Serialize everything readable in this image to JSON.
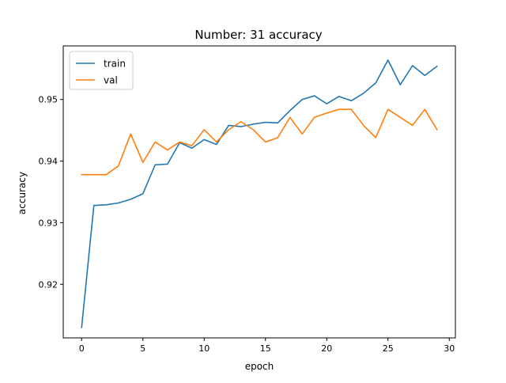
{
  "chart_data": {
    "type": "line",
    "title": "Number: 31 accuracy",
    "xlabel": "epoch",
    "ylabel": "accuracy",
    "xlim": [
      -1.5,
      30.5
    ],
    "ylim": [
      0.9113,
      0.9587
    ],
    "xticks": [
      0,
      5,
      10,
      15,
      20,
      25,
      30
    ],
    "yticks": [
      0.92,
      0.93,
      0.94,
      0.95
    ],
    "ytick_labels": [
      "0.92",
      "0.93",
      "0.94",
      "0.95"
    ],
    "grid": false,
    "legend": {
      "position": "top-left",
      "entries": [
        "train",
        "val"
      ]
    },
    "x": [
      0,
      1,
      2,
      3,
      4,
      5,
      6,
      7,
      8,
      9,
      10,
      11,
      12,
      13,
      14,
      15,
      16,
      17,
      18,
      19,
      20,
      21,
      22,
      23,
      24,
      25,
      26,
      27,
      28,
      29
    ],
    "series": [
      {
        "name": "train",
        "color": "#1f77b4",
        "values": [
          0.913,
          0.9328,
          0.9329,
          0.9332,
          0.9338,
          0.9347,
          0.9394,
          0.9395,
          0.943,
          0.9421,
          0.9435,
          0.9427,
          0.9458,
          0.9456,
          0.946,
          0.9463,
          0.9462,
          0.9482,
          0.95,
          0.9506,
          0.9493,
          0.9505,
          0.9498,
          0.951,
          0.9527,
          0.9564,
          0.9524,
          0.9555,
          0.9539,
          0.9554
        ]
      },
      {
        "name": "val",
        "color": "#ff7f0e",
        "values": [
          0.9378,
          0.9378,
          0.9378,
          0.9392,
          0.9444,
          0.9398,
          0.9431,
          0.9418,
          0.9431,
          0.9425,
          0.9451,
          0.9431,
          0.9451,
          0.9464,
          0.9451,
          0.9431,
          0.9438,
          0.9471,
          0.9444,
          0.9471,
          0.9478,
          0.9484,
          0.9484,
          0.9458,
          0.9438,
          0.9484,
          0.9471,
          0.9458,
          0.9484,
          0.9451
        ]
      }
    ]
  }
}
